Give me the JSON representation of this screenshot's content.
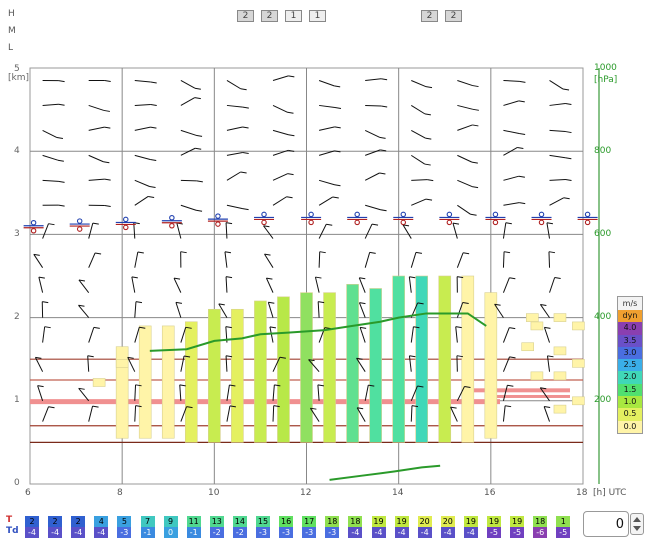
{
  "levels": [
    "H",
    "M",
    "L"
  ],
  "cloud_boxes": [
    "2",
    "2",
    "1",
    "1",
    "2",
    "2"
  ],
  "y_axis_left": {
    "unit": "[km]",
    "ticks": [
      "5",
      "4",
      "3",
      "2",
      "1",
      "0"
    ]
  },
  "y_axis_right": {
    "unit": "[hPa]",
    "ticks": [
      "1000",
      "800",
      "600",
      "400",
      "200"
    ]
  },
  "x_axis": {
    "ticks": [
      "6",
      "8",
      "10",
      "12",
      "14",
      "16",
      "18"
    ],
    "unit": "[h] UTC"
  },
  "legend": {
    "title": "m/s",
    "items": [
      {
        "label": "dyn",
        "color": "#f0a030"
      },
      {
        "label": "4.0",
        "color": "#8a3fb0"
      },
      {
        "label": "3.5",
        "color": "#6a50c8"
      },
      {
        "label": "3.0",
        "color": "#4a6ee0"
      },
      {
        "label": "2.5",
        "color": "#3aaee8"
      },
      {
        "label": "2.0",
        "color": "#40d8b8"
      },
      {
        "label": "1.5",
        "color": "#50e070"
      },
      {
        "label": "1.0",
        "color": "#a8e840"
      },
      {
        "label": "0.5",
        "color": "#e4f060"
      },
      {
        "label": "0.0",
        "color": "#fff4a8"
      }
    ]
  },
  "temp_row": {
    "label": "T",
    "values": [
      "2",
      "2",
      "2",
      "4",
      "5",
      "7",
      "9",
      "11",
      "13",
      "14",
      "15",
      "16",
      "17",
      "18",
      "18",
      "19",
      "19",
      "20",
      "20",
      "19",
      "19",
      "19",
      "18",
      "1"
    ],
    "colors": [
      "#3060d0",
      "#3060d0",
      "#3060d0",
      "#3aa0e0",
      "#3aa0e0",
      "#40c8c0",
      "#40c8c0",
      "#50d890",
      "#50d890",
      "#50d890",
      "#50d890",
      "#60e060",
      "#60e060",
      "#90e050",
      "#90e050",
      "#c0e840",
      "#c0e840",
      "#e0ec50",
      "#e0ec50",
      "#c0e840",
      "#c0e840",
      "#c0e840",
      "#90e050",
      "#90e050"
    ]
  },
  "dew_row": {
    "label": "Td",
    "values": [
      "-4",
      "-4",
      "-4",
      "-4",
      "-3",
      "-1",
      "0",
      "-1",
      "-2",
      "-2",
      "-3",
      "-3",
      "-3",
      "-3",
      "-4",
      "-4",
      "-4",
      "-4",
      "-4",
      "-4",
      "-5",
      "-5",
      "-6",
      "-5"
    ],
    "colors": [
      "#5a50c8",
      "#5a50c8",
      "#5a50c8",
      "#5a50c8",
      "#4a6ee0",
      "#3a8ae0",
      "#3aa0e0",
      "#3a8ae0",
      "#4a6ee0",
      "#4a6ee0",
      "#4a6ee0",
      "#4a6ee0",
      "#4a6ee0",
      "#4a6ee0",
      "#5a50c8",
      "#5a50c8",
      "#5a50c8",
      "#5a50c8",
      "#5a50c8",
      "#5a50c8",
      "#7040c0",
      "#7040c0",
      "#8a3fb0",
      "#7040c0"
    ]
  },
  "counter": {
    "value": "0"
  }
}
